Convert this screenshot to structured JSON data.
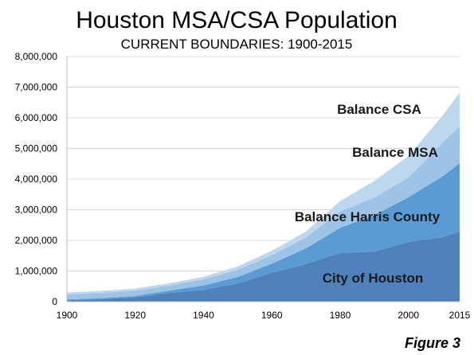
{
  "chart_data": {
    "type": "area",
    "stacked": true,
    "title": "Houston MSA/CSA Population",
    "subtitle": "CURRENT BOUNDARIES: 1900-2015",
    "figure_label": "Figure 3",
    "xlabel": "",
    "ylabel": "",
    "x": [
      1900,
      1910,
      1920,
      1930,
      1940,
      1950,
      1960,
      1970,
      1980,
      1990,
      2000,
      2010,
      2015
    ],
    "xlim": [
      1900,
      2015
    ],
    "ylim": [
      0,
      8000000
    ],
    "x_ticks": [
      "1900",
      "1920",
      "1940",
      "1960",
      "1980",
      "2000",
      "2015"
    ],
    "y_ticks": [
      "0",
      "1,000,000",
      "2,000,000",
      "3,000,000",
      "4,000,000",
      "5,000,000",
      "6,000,000",
      "7,000,000",
      "8,000,000"
    ],
    "grid": true,
    "legend": "none (inline labels)",
    "series": [
      {
        "name": "City of Houston",
        "color": "#4f81bd",
        "values": [
          45000,
          80000,
          140000,
          290000,
          385000,
          595000,
          940000,
          1230000,
          1595000,
          1630000,
          1955000,
          2100000,
          2280000
        ]
      },
      {
        "name": "Balance Harris County",
        "color": "#5b9bd5",
        "values": [
          25000,
          35000,
          45000,
          70000,
          145000,
          210000,
          300000,
          510000,
          815000,
          1190000,
          1450000,
          1990000,
          2240000
        ]
      },
      {
        "name": "Balance MSA",
        "color": "#9dc3e6",
        "values": [
          165000,
          170000,
          175000,
          165000,
          200000,
          230000,
          280000,
          360000,
          530000,
          580000,
          640000,
          1100000,
          1200000
        ]
      },
      {
        "name": "Balance CSA",
        "color": "#bdd7ee",
        "values": [
          65000,
          65000,
          70000,
          75000,
          80000,
          115000,
          140000,
          190000,
          340000,
          540000,
          710000,
          880000,
          1100000
        ]
      }
    ]
  }
}
